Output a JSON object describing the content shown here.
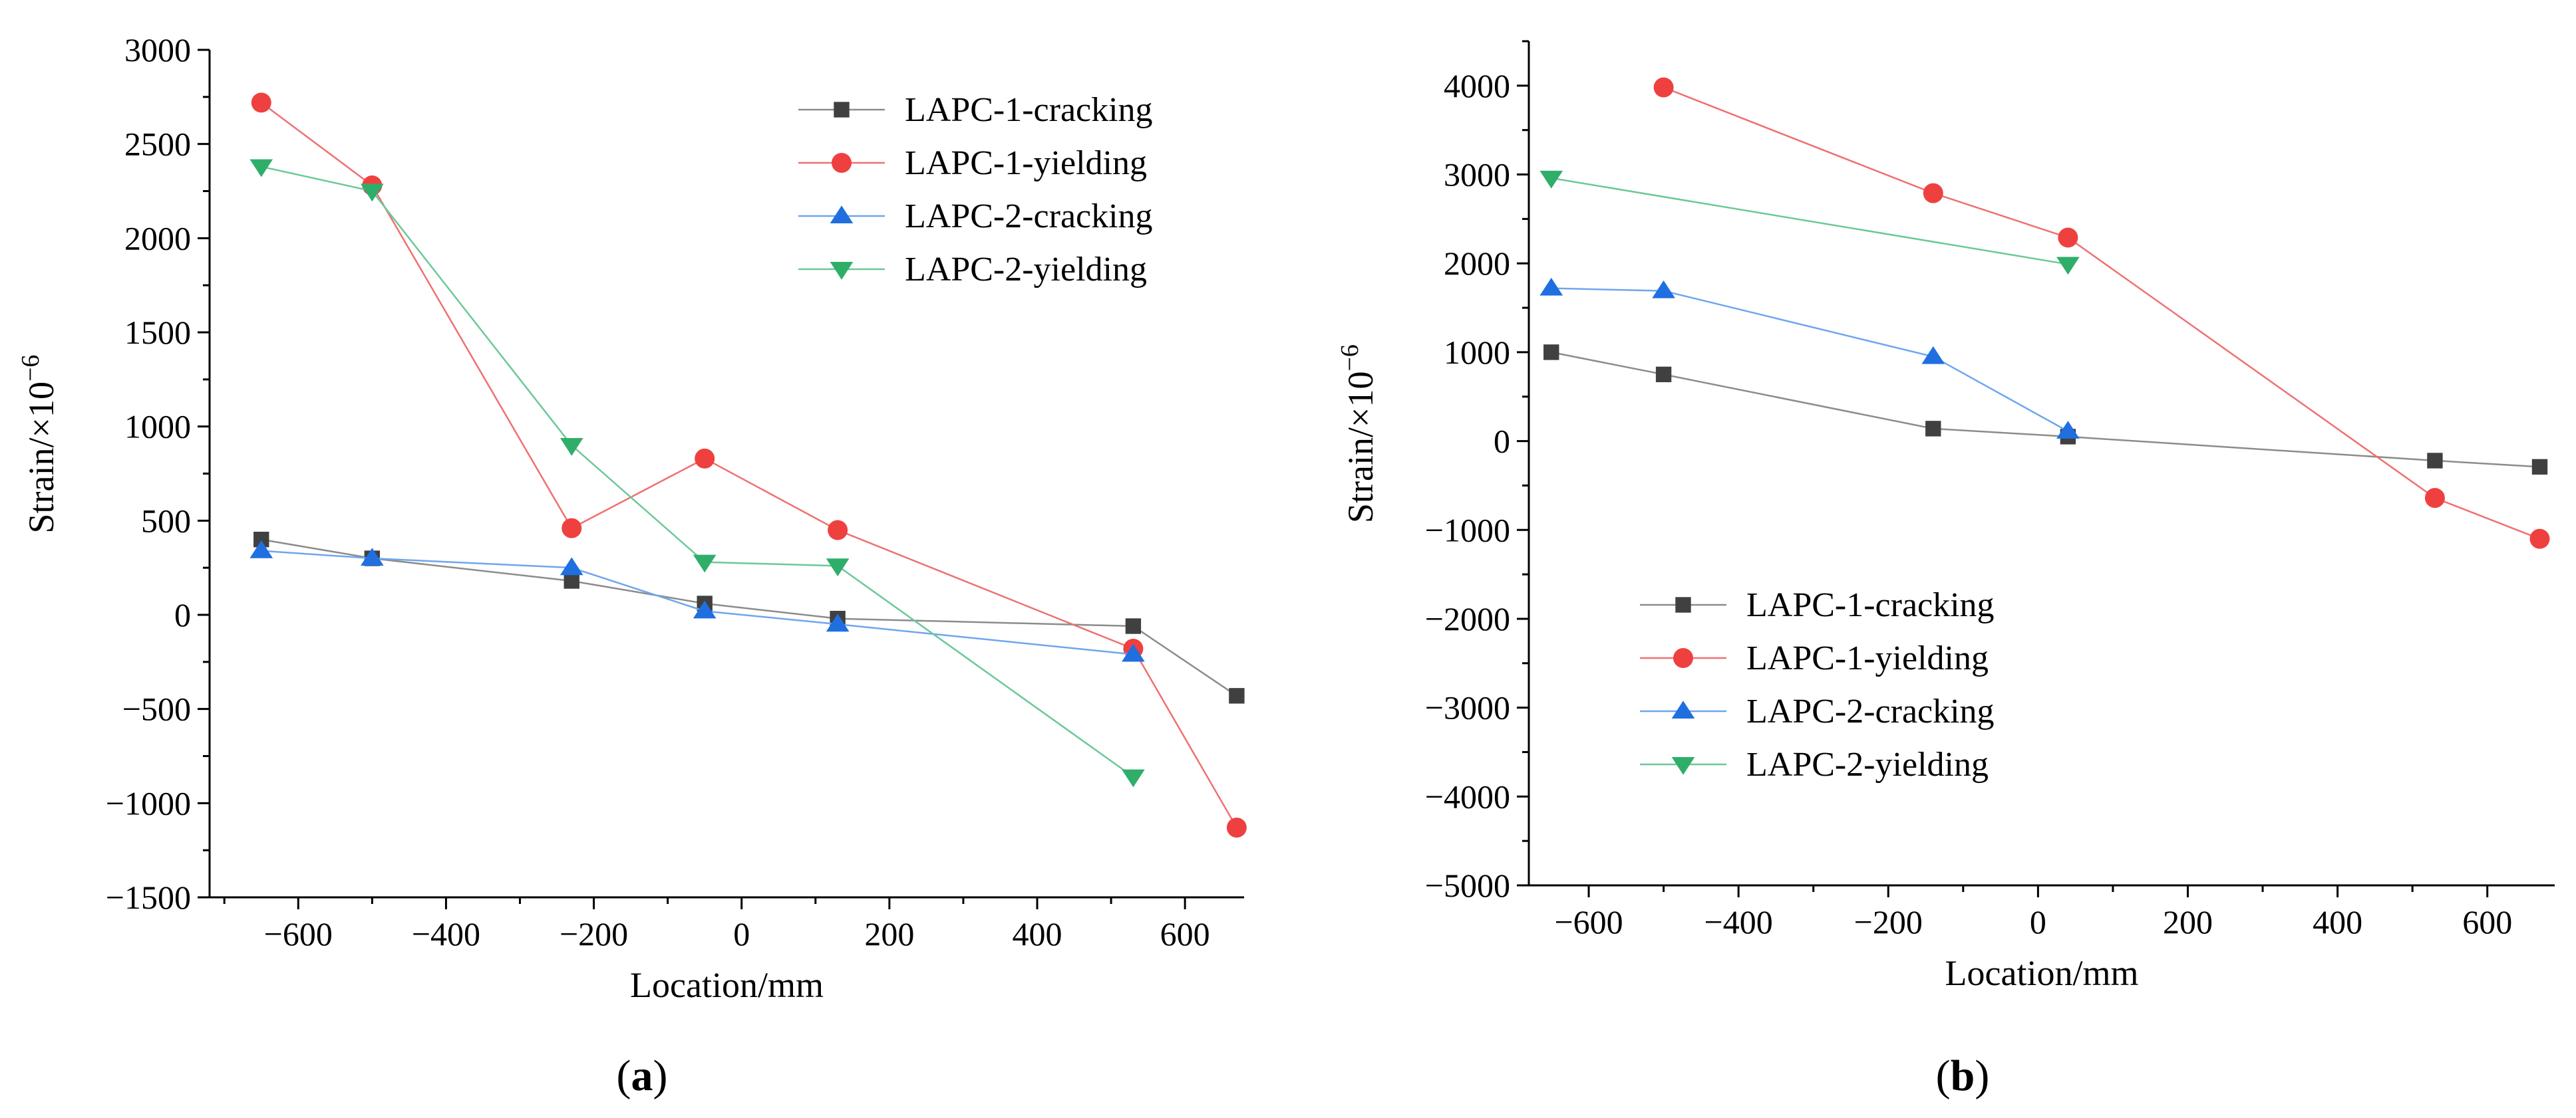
{
  "chart_data": [
    {
      "type": "line",
      "panel": "a",
      "panel_label": "a",
      "xlabel": "Location/mm",
      "ylabel": "Strain/×10",
      "ylabel_sup": "−6",
      "xlim": [
        -720,
        680
      ],
      "ylim": [
        -1500,
        3000
      ],
      "xticks": [
        -600,
        -400,
        -200,
        0,
        200,
        400,
        600
      ],
      "xtick_labels": [
        "−600",
        "−400",
        "−200",
        "0",
        "200",
        "400",
        "600"
      ],
      "yticks": [
        -1500,
        -1000,
        -500,
        0,
        500,
        1000,
        1500,
        2000,
        2500,
        3000
      ],
      "ytick_labels": [
        "−1500",
        "−1000",
        "−500",
        "0",
        "500",
        "1000",
        "1500",
        "2000",
        "2500",
        "3000"
      ],
      "legend_position": "top-right",
      "series": [
        {
          "name": "LAPC-1-cracking",
          "marker": "square",
          "color": "#404040",
          "line_color": "#8c8c8c",
          "x": [
            -650,
            -500,
            -230,
            -50,
            130,
            530,
            670
          ],
          "y": [
            400,
            300,
            180,
            60,
            -20,
            -60,
            -430
          ]
        },
        {
          "name": "LAPC-1-yielding",
          "marker": "circle",
          "color": "#ef4040",
          "line_color": "#f07070",
          "x": [
            -650,
            -500,
            -230,
            -50,
            130,
            530,
            670
          ],
          "y": [
            2720,
            2280,
            460,
            830,
            450,
            -180,
            -1130
          ]
        },
        {
          "name": "LAPC-2-cracking",
          "marker": "triangle-up",
          "color": "#1f6fe0",
          "line_color": "#6ea6ee",
          "x": [
            -650,
            -500,
            -230,
            -50,
            130,
            530
          ],
          "y": [
            340,
            300,
            250,
            20,
            -50,
            -210
          ]
        },
        {
          "name": "LAPC-2-yielding",
          "marker": "triangle-down",
          "color": "#2fae6a",
          "line_color": "#6cc898",
          "x": [
            -650,
            -500,
            -230,
            -50,
            130,
            530
          ],
          "y": [
            2380,
            2250,
            900,
            280,
            260,
            -860
          ]
        }
      ]
    },
    {
      "type": "line",
      "panel": "b",
      "panel_label": "b",
      "xlabel": "Location/mm",
      "ylabel": "Strain/×10",
      "ylabel_sup": "−6",
      "xlim": [
        -680,
        690
      ],
      "ylim": [
        -5000,
        4500
      ],
      "xticks": [
        -600,
        -400,
        -200,
        0,
        200,
        400,
        600
      ],
      "xtick_labels": [
        "−600",
        "−400",
        "−200",
        "0",
        "200",
        "400",
        "600"
      ],
      "yticks": [
        -5000,
        -4000,
        -3000,
        -2000,
        -1000,
        0,
        1000,
        2000,
        3000,
        4000
      ],
      "ytick_labels": [
        "−5000",
        "−4000",
        "−3000",
        "−2000",
        "−1000",
        "0",
        "1000",
        "2000",
        "3000",
        "4000"
      ],
      "legend_position": "bottom-left",
      "series": [
        {
          "name": "LAPC-1-cracking",
          "marker": "square",
          "color": "#404040",
          "line_color": "#8c8c8c",
          "x": [
            -650,
            -500,
            -140,
            40,
            530,
            670
          ],
          "y": [
            1000,
            750,
            140,
            50,
            -220,
            -290
          ]
        },
        {
          "name": "LAPC-1-yielding",
          "marker": "circle",
          "color": "#ef4040",
          "line_color": "#f07070",
          "x": [
            -500,
            -140,
            40,
            530,
            670
          ],
          "y": [
            3980,
            2790,
            2290,
            -640,
            -1100
          ]
        },
        {
          "name": "LAPC-2-cracking",
          "marker": "triangle-up",
          "color": "#1f6fe0",
          "line_color": "#6ea6ee",
          "x": [
            -650,
            -500,
            -140,
            40
          ],
          "y": [
            1720,
            1690,
            950,
            110
          ]
        },
        {
          "name": "LAPC-2-yielding",
          "marker": "triangle-down",
          "color": "#2fae6a",
          "line_color": "#6cc898",
          "x": [
            -650,
            40
          ],
          "y": [
            2960,
            1990
          ]
        }
      ]
    }
  ]
}
